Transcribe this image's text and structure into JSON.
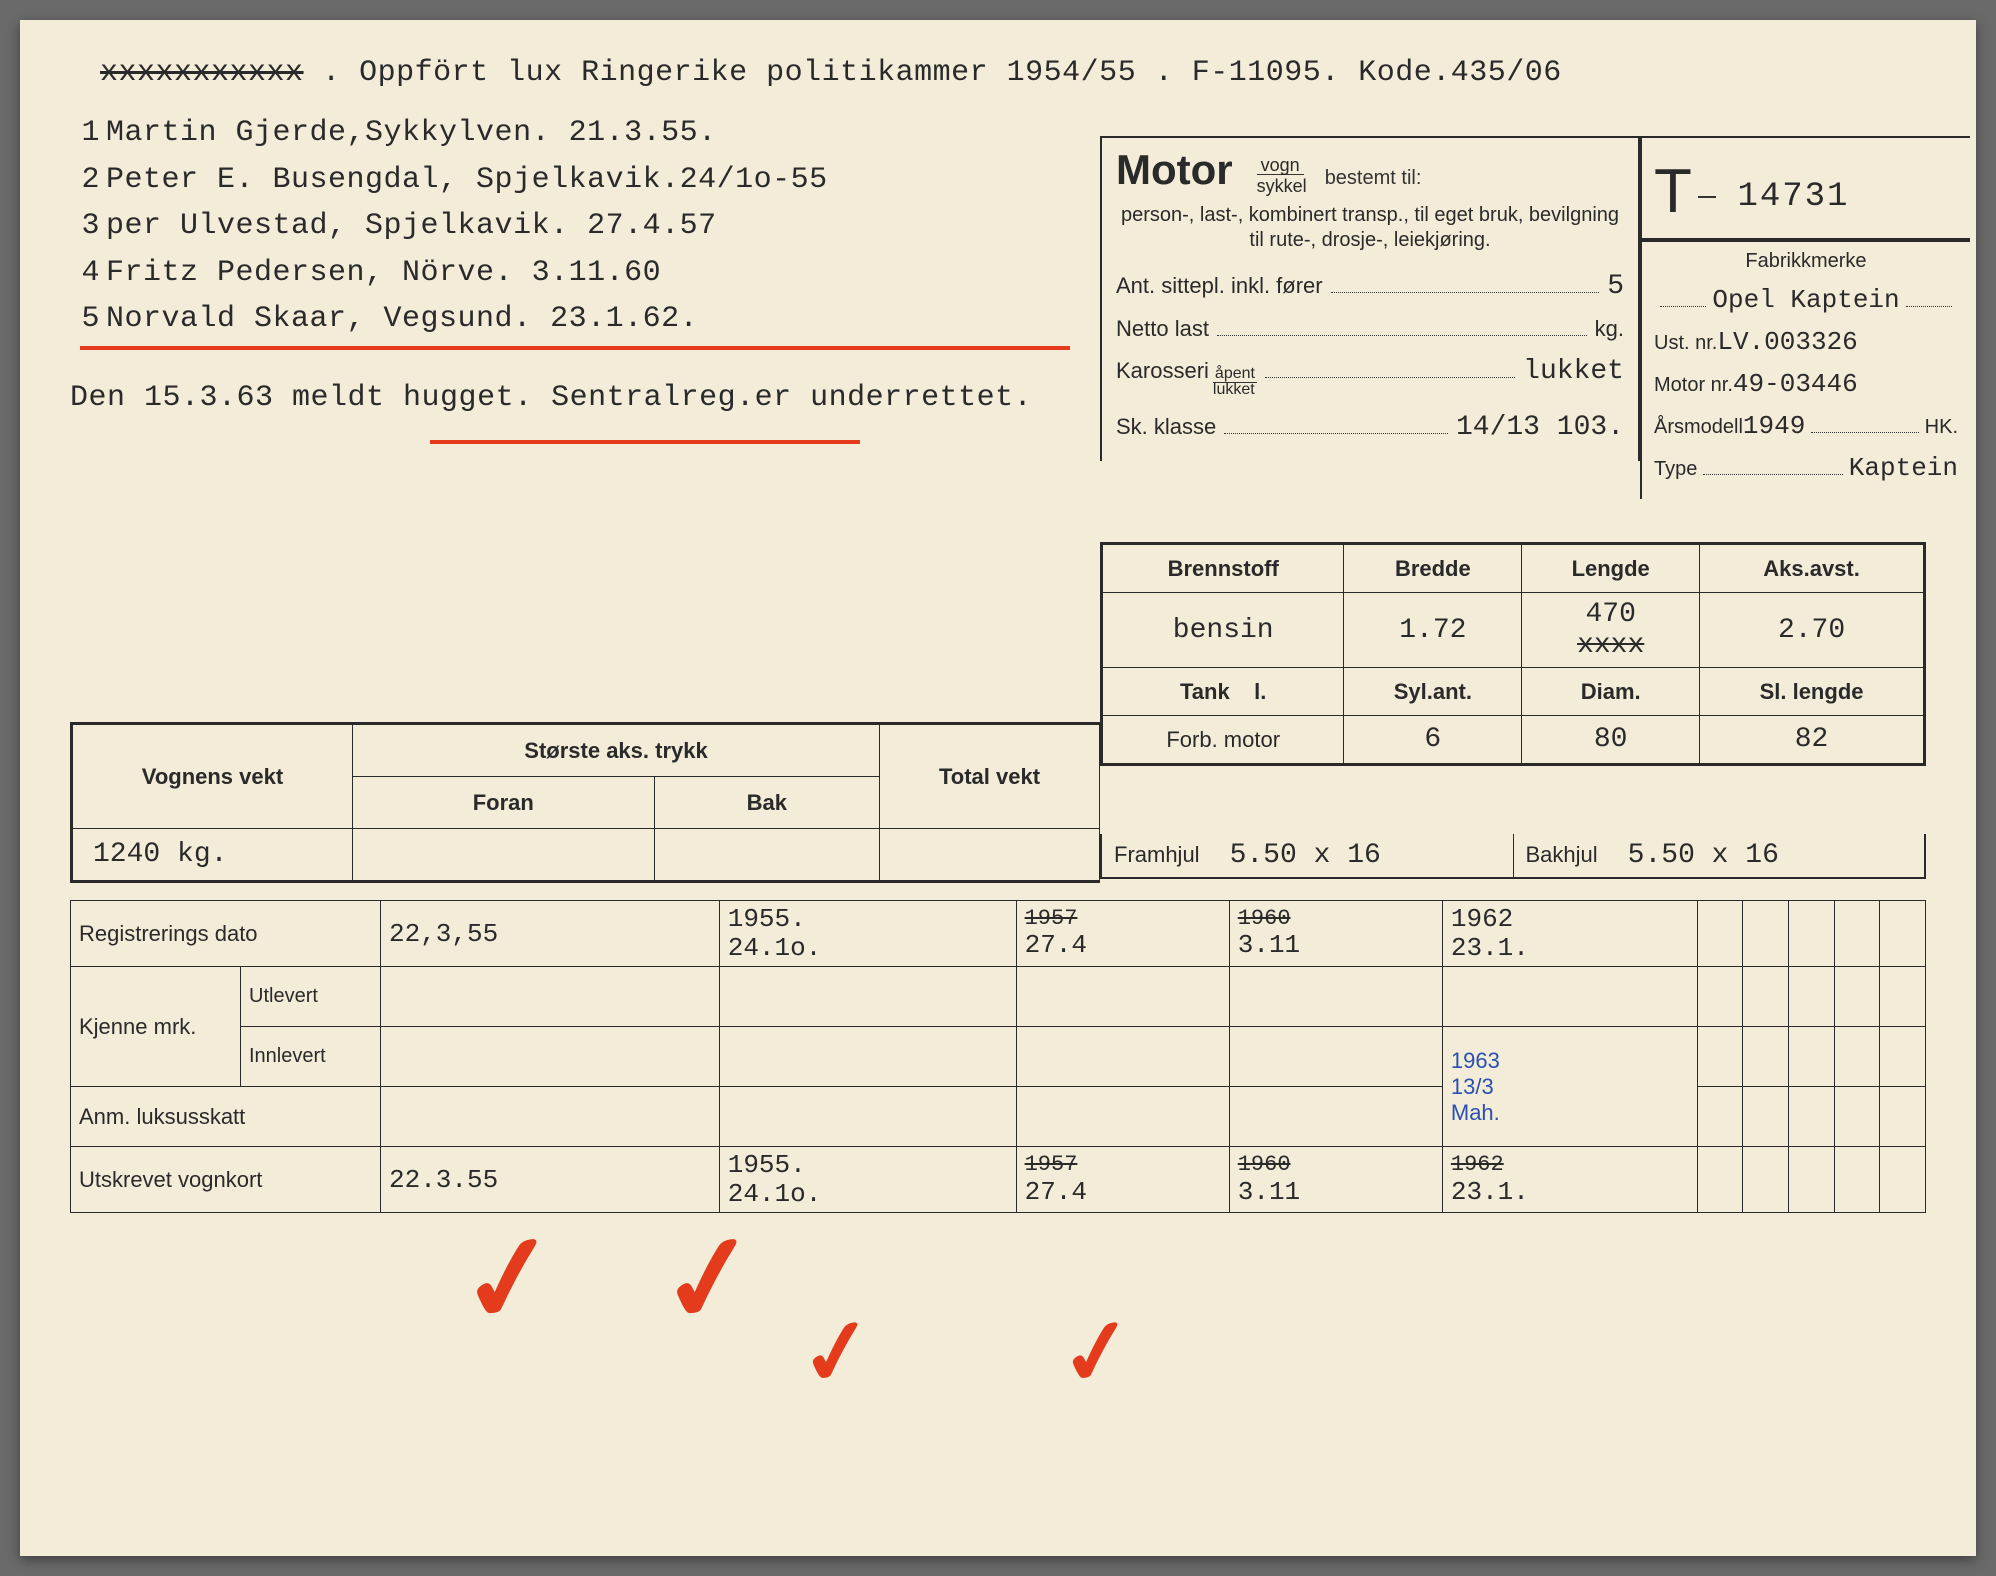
{
  "header": {
    "strikeout": "xxxxxxxxxxx",
    "text1": ". Oppfört lux  Ringerike politikammer 1954/55 .",
    "text2": "F-11095. Kode.435/06"
  },
  "owners": [
    {
      "n": "1",
      "text": "Martin Gjerde,Sykkylven. 21.3.55."
    },
    {
      "n": "2",
      "text": "Peter E. Busengdal, Spjelkavik.24/1o-55"
    },
    {
      "n": "3",
      "text": "per Ulvestad, Spjelkavik. 27.4.57"
    },
    {
      "n": "4",
      "text": "Fritz Pedersen, Nörve. 3.11.60"
    },
    {
      "n": "5",
      "text": "Norvald Skaar, Vegsund.  23.1.62."
    }
  ],
  "note": "Den 15.3.63 meldt hugget. Sentralreg.er underrettet.",
  "motor": {
    "title": "Motor",
    "frac_top": "vogn",
    "frac_bot": "sykkel",
    "bestemt": "bestemt til:",
    "desc": "person-, last-, kombinert transp., til eget bruk, bevilgning til rute-, drosje-, leiekjøring.",
    "seats_label": "Ant. sittepl. inkl. fører",
    "seats": "5",
    "netto_label": "Netto last",
    "netto_unit": "kg.",
    "kaross_label": "Karosseri",
    "kaross_top": "åpent",
    "kaross_bot": "lukket",
    "kaross_val": "lukket",
    "klasse_label": "Sk. klasse",
    "klasse_val": "14/13 103."
  },
  "plate": {
    "letter": "T",
    "number": "14731"
  },
  "spec": {
    "fab_label": "Fabrikkmerke",
    "fab": "Opel Kaptein",
    "ust_label": "Ust. nr.",
    "ust": "LV.003326",
    "motor_label": "Motor nr.",
    "motor": "49-03446",
    "aar_label": "Årsmodell",
    "aar": "1949",
    "hk_label": "HK.",
    "type_label": "Type",
    "type": "Kaptein"
  },
  "grid": {
    "h1": "Brennstoff",
    "h2": "Bredde",
    "h3": "Lengde",
    "h4": "Aks.avst.",
    "v1": "bensin",
    "v2": "1.72",
    "v3_top": "470",
    "v3_strike": "xxxx",
    "v4": "2.70",
    "h5": "Tank",
    "h5b": "l.",
    "h6": "Syl.ant.",
    "h7": "Diam.",
    "h8": "Sl. lengde",
    "v5": "Forb. motor",
    "v6": "6",
    "v7": "80",
    "v8": "82"
  },
  "wheels": {
    "front_label": "Framhjul",
    "front": "5.50 x 16",
    "rear_label": "Bakhjul",
    "rear": "5.50 x 16"
  },
  "weight": {
    "h1": "Vognens vekt",
    "h2": "Største aks. trykk",
    "h2a": "Foran",
    "h2b": "Bak",
    "h3": "Total vekt",
    "v1": "1240 kg."
  },
  "bottom": {
    "reg_label": "Registrerings dato",
    "reg": [
      "22,3,55",
      "1955.\n24.1o.",
      "1957\n27.4",
      "1960\n3.11",
      "1962\n23.1."
    ],
    "kjenne_label": "Kjenne mrk.",
    "utlevert": "Utlevert",
    "innlevert": "Innlevert",
    "innlevert_hand": "1963\n13/3\nMah.",
    "anm_label": "Anm. luksusskatt",
    "utskrevet_label": "Utskrevet vognkort",
    "utskrevet": [
      "22.3.55",
      "1955.\n24.1o.",
      "1957\n27.4",
      "1960\n3.11",
      "1962\n23.1."
    ]
  },
  "colors": {
    "paper": "#f2ecd8",
    "ink": "#2a2a2a",
    "red": "#e33b1c",
    "blue": "#2a4fb0"
  }
}
